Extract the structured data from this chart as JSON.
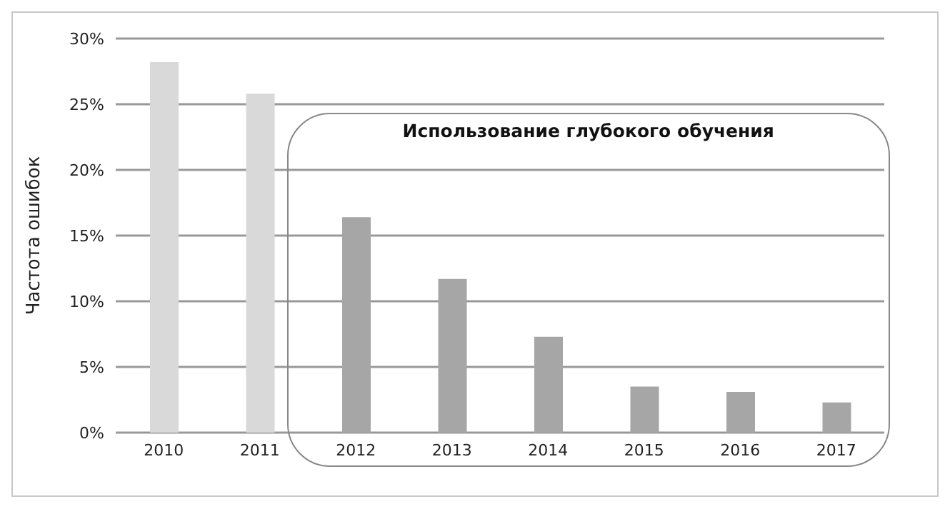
{
  "chart_data": {
    "type": "bar",
    "ylabel": "Частота ошибок",
    "categories": [
      "2010",
      "2011",
      "2012",
      "2013",
      "2014",
      "2015",
      "2016",
      "2017"
    ],
    "values": [
      28.2,
      25.8,
      16.4,
      11.7,
      7.3,
      3.5,
      3.1,
      2.3
    ],
    "colors": [
      "#d9d9d9",
      "#d9d9d9",
      "#a6a6a6",
      "#a6a6a6",
      "#a6a6a6",
      "#a6a6a6",
      "#a6a6a6",
      "#a6a6a6"
    ],
    "ylim": [
      0,
      30
    ],
    "yticks": [
      {
        "value": 0,
        "label": "0%"
      },
      {
        "value": 5,
        "label": "5%"
      },
      {
        "value": 10,
        "label": "10%"
      },
      {
        "value": 15,
        "label": "15%"
      },
      {
        "value": 20,
        "label": "20%"
      },
      {
        "value": 25,
        "label": "25%"
      },
      {
        "value": 30,
        "label": "30%"
      }
    ],
    "grid": "y",
    "legend": false,
    "annotations": [
      "Использование глубокого обучения"
    ]
  }
}
